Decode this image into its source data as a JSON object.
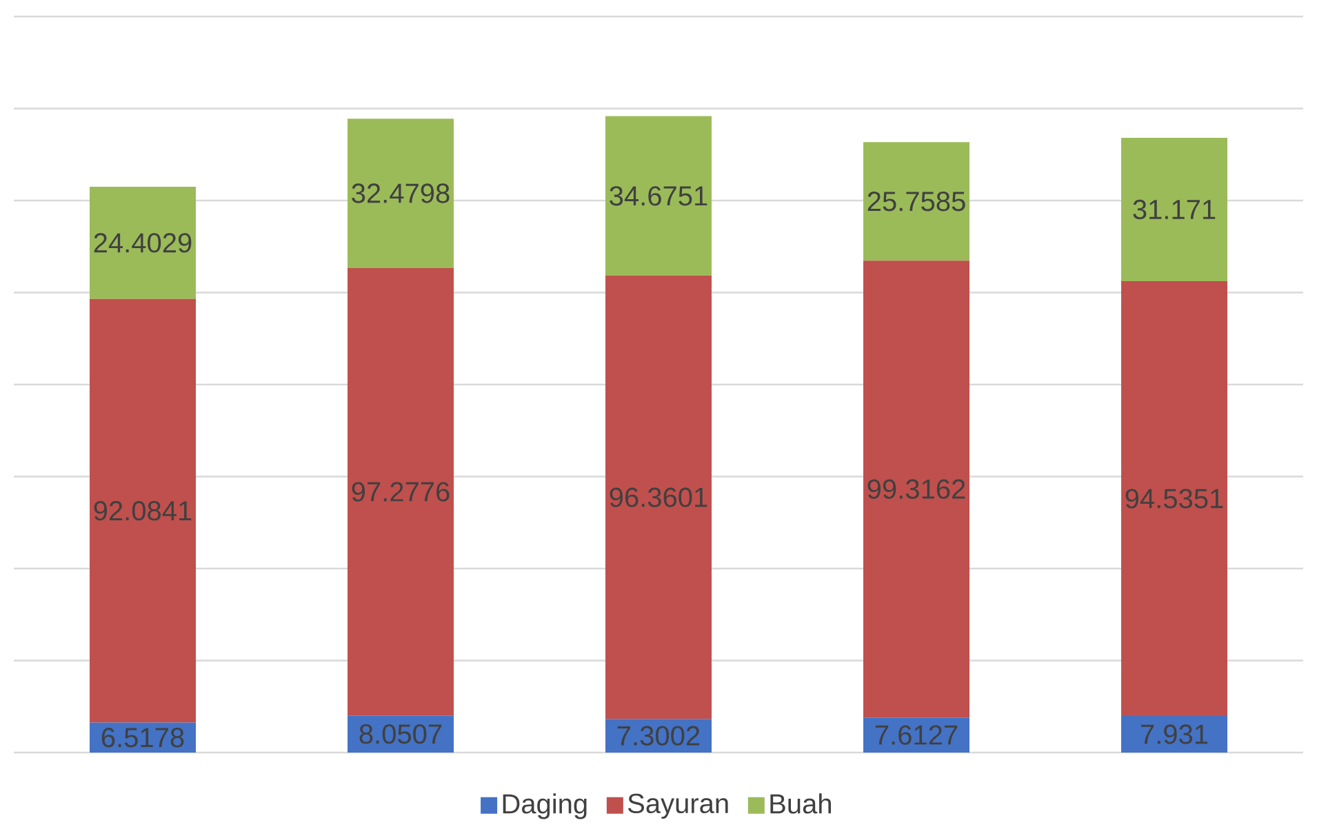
{
  "chart_data": {
    "type": "bar",
    "stacked": true,
    "categories": [
      null,
      null,
      null,
      null,
      null
    ],
    "series": [
      {
        "name": "Daging",
        "color": "#4472c4",
        "values": [
          6.5178,
          8.0507,
          7.3002,
          7.6127,
          7.931
        ]
      },
      {
        "name": "Sayuran",
        "color": "#c0504d",
        "values": [
          92.0841,
          97.2776,
          96.3601,
          99.3162,
          94.5351
        ]
      },
      {
        "name": "Buah",
        "color": "#9bbb59",
        "values": [
          24.4029,
          32.4798,
          34.6751,
          25.7585,
          31.171
        ]
      }
    ],
    "ylim": [
      0,
      160
    ],
    "yticks": [
      0,
      20,
      40,
      60,
      80,
      100,
      120,
      140,
      160
    ],
    "tick_labels": false,
    "grid": "y",
    "data_labels": true,
    "legend": "bottom"
  }
}
